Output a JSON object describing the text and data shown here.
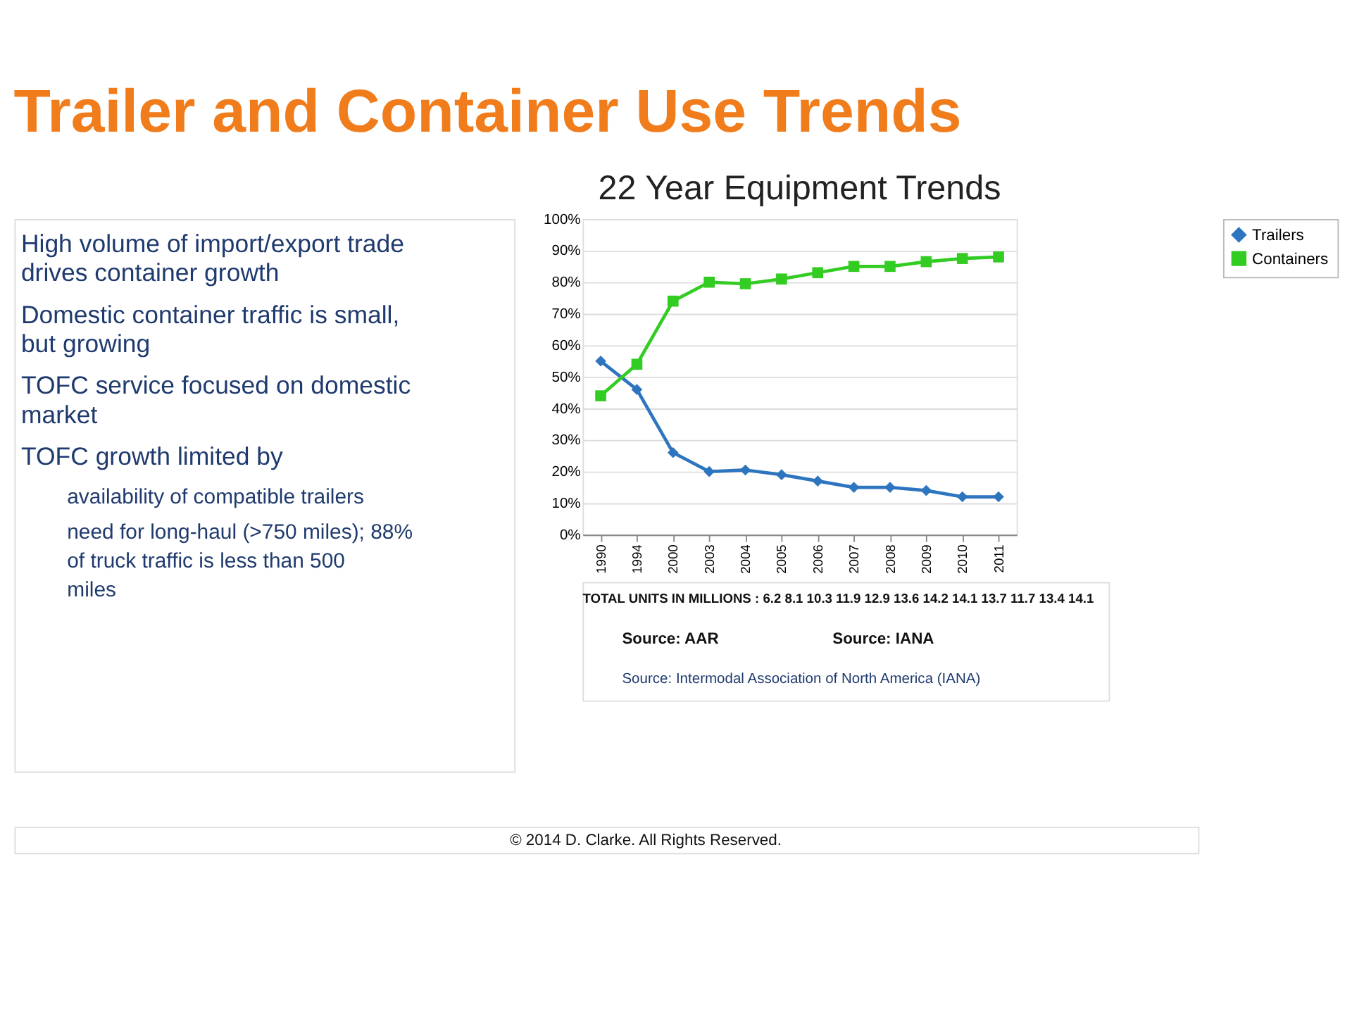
{
  "chart_data": {
    "type": "line",
    "title": "Trailer and Container Use Trends",
    "subtitle": "22 Year Equipment Trends",
    "categories": [
      "1990",
      "1994",
      "2000",
      "2003",
      "2004",
      "2005",
      "2006",
      "2007",
      "2008",
      "2009",
      "2010",
      "2011"
    ],
    "series": [
      {
        "name": "Trailers",
        "color": "#2e75c0",
        "marker": "diamond",
        "values": [
          55,
          46,
          26,
          20,
          20.5,
          19,
          17,
          15,
          15,
          14,
          12,
          12
        ]
      },
      {
        "name": "Containers",
        "color": "#33cc22",
        "marker": "square",
        "values": [
          44,
          54,
          74,
          80,
          79.5,
          81,
          83,
          85,
          85,
          86.5,
          87.5,
          88
        ]
      }
    ],
    "ylim": [
      0,
      100
    ],
    "yticks": [
      {
        "value": 0,
        "label": "0%"
      },
      {
        "value": 10,
        "label": "10%"
      },
      {
        "value": 20,
        "label": "20%"
      },
      {
        "value": 30,
        "label": "30%"
      },
      {
        "value": 40,
        "label": "40%"
      },
      {
        "value": 50,
        "label": "50%"
      },
      {
        "value": 60,
        "label": "60%"
      },
      {
        "value": 70,
        "label": "70%"
      },
      {
        "value": 80,
        "label": "80%"
      },
      {
        "value": 90,
        "label": "90%"
      },
      {
        "value": 100,
        "label": "100%"
      }
    ],
    "grid": "y",
    "legend": "right",
    "annotations": [
      "High volume of import/export trade drives container growth",
      "Domestic container traffic is small, but growing",
      "TOFC service focused on domestic market",
      "TOFC growth limited by",
      "availability of compatible trailers",
      "need for long-haul (>750 miles); 88% of truck traffic is less than 500 miles",
      "TOTAL UNITS IN MILLIONS : 6.2  8.1  10.3  11.9  12.9  13.6  14.2  14.1  13.7  11.7  13.4  14.1",
      "Source: AAR",
      "Source: IANA",
      "Source: Intermodal Association of North America (IANA)",
      "© 2014 D. Clarke.   All Rights Reserved."
    ]
  }
}
